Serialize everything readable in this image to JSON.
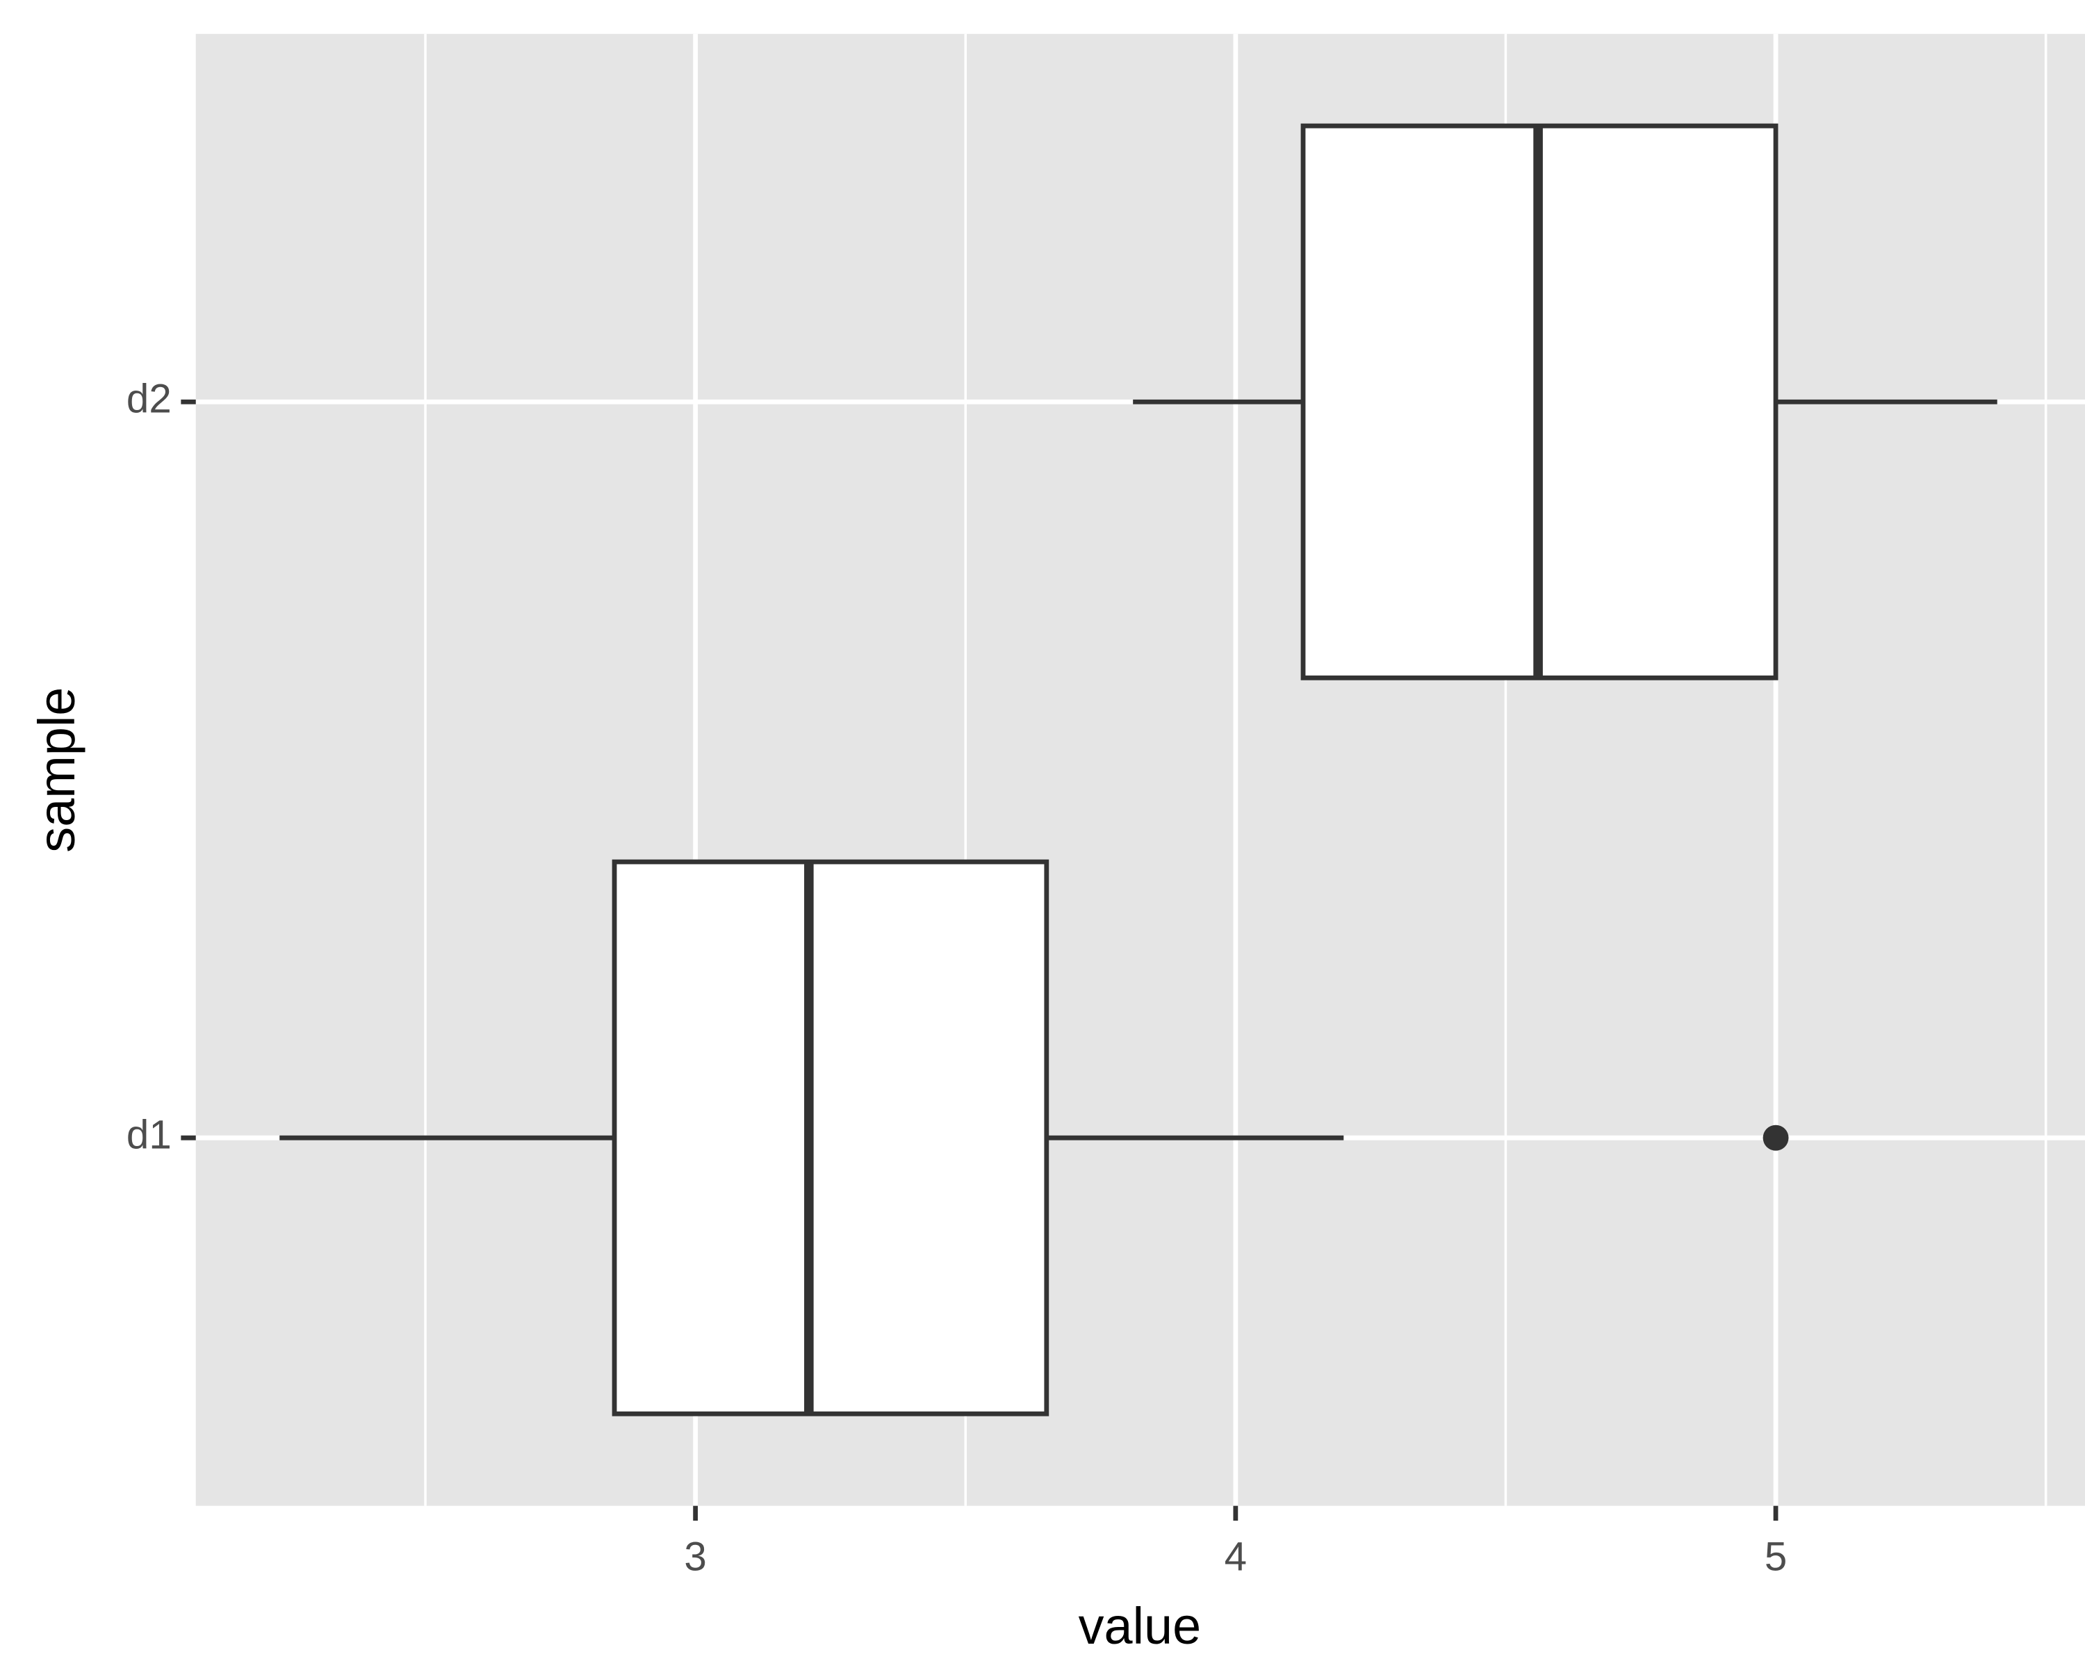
{
  "chart_data": {
    "type": "boxplot",
    "xlabel": "value",
    "ylabel": "sample",
    "categories": [
      "d1",
      "d2"
    ],
    "boxes": [
      {
        "min": 2.23,
        "q1": 2.85,
        "median": 3.21,
        "q3": 3.65,
        "max": 4.2,
        "outliers": [
          5.0
        ]
      },
      {
        "min": 3.81,
        "q1": 4.125,
        "median": 4.56,
        "q3": 5.0,
        "max": 5.41,
        "outliers": []
      }
    ],
    "xlim": [
      2.075,
      5.5725
    ],
    "xticks": [
      3,
      4,
      5
    ],
    "minor_xticks": [
      2.5,
      3.5,
      4.5,
      5.5
    ],
    "grid": true,
    "panel_color": "#e5e5e5",
    "color": "#333333",
    "fill": "#ffffff"
  }
}
